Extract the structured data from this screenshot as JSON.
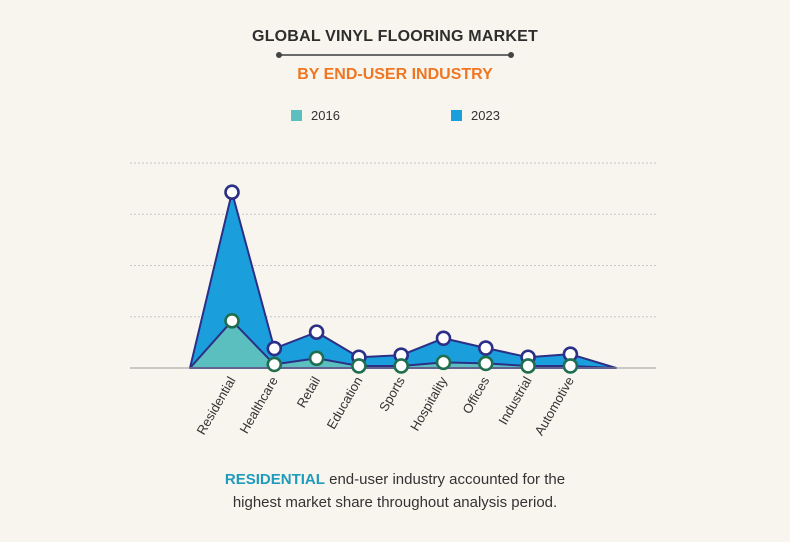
{
  "title": "GLOBAL VINYL FLOORING MARKET",
  "subtitle": "BY END-USER INDUSTRY",
  "footer": {
    "highlight": "RESIDENTIAL",
    "line1_rest": " end-user industry accounted for the",
    "line2": "highest market share throughout analysis period."
  },
  "colors": {
    "series_2016": "#5bbfbf",
    "series_2023": "#1b9fdc",
    "outline": "#2b2f86",
    "grid": "#c8c8c8",
    "subtitle": "#ef7622",
    "highlight": "#1f9bbb"
  },
  "chart_data": {
    "type": "area",
    "categories": [
      "Residential",
      "Healthcare",
      "Retail",
      "Education",
      "Sports",
      "Hospitality",
      "Offices",
      "Industrial",
      "Automotive"
    ],
    "series": [
      {
        "name": "2016",
        "values": [
          0.92,
          0.07,
          0.19,
          0.04,
          0.04,
          0.11,
          0.09,
          0.04,
          0.04
        ],
        "color": "#5bbfbf"
      },
      {
        "name": "2023",
        "values": [
          3.43,
          0.38,
          0.7,
          0.21,
          0.25,
          0.58,
          0.39,
          0.21,
          0.27
        ],
        "color": "#1b9fdc"
      }
    ],
    "ylim": [
      0,
      4
    ],
    "grid": true,
    "legend_position": "top-center",
    "tick_label_rotation": -60,
    "xlabel": "",
    "ylabel": ""
  }
}
